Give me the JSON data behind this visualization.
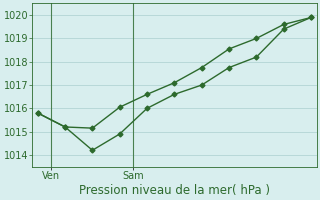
{
  "line1_x": [
    0,
    1,
    2,
    3,
    4,
    5,
    6,
    7,
    8,
    9,
    10
  ],
  "line1_y": [
    1015.8,
    1015.2,
    1014.2,
    1014.9,
    1016.0,
    1016.6,
    1017.0,
    1017.75,
    1018.2,
    1019.4,
    1019.9
  ],
  "line2_x": [
    0,
    1,
    2,
    3,
    4,
    5,
    6,
    7,
    8,
    9,
    10
  ],
  "line2_y": [
    1015.8,
    1015.2,
    1015.15,
    1016.05,
    1016.6,
    1017.1,
    1017.75,
    1018.55,
    1019.0,
    1019.6,
    1019.9
  ],
  "line_color": "#2d6a2d",
  "marker": "D",
  "markersize": 2.5,
  "linewidth": 1.0,
  "ylim": [
    1013.5,
    1020.5
  ],
  "yticks": [
    1014,
    1015,
    1016,
    1017,
    1018,
    1019,
    1020
  ],
  "xlabel": "Pression niveau de la mer( hPa )",
  "xlabel_fontsize": 8.5,
  "ven_x": 0.5,
  "sam_x": 3.5,
  "xlim": [
    -0.2,
    10.2
  ],
  "bg_color": "#d8eeee",
  "grid_color": "#b8d8d8",
  "tick_fontsize": 7,
  "xtick_label_fontsize": 7
}
